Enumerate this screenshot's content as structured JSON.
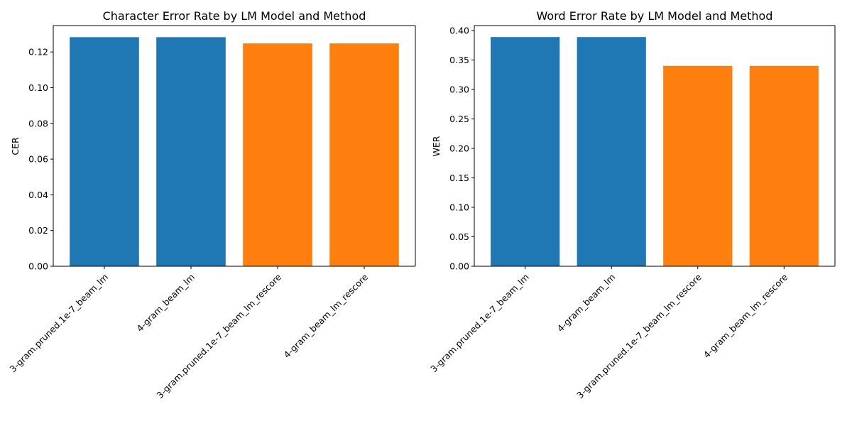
{
  "chart_data": [
    {
      "type": "bar",
      "title": "Character Error Rate by LM Model and Method",
      "xlabel": "",
      "ylabel": "CER",
      "categories": [
        "3-gram.pruned.1e-7_beam_lm",
        "4-gram_beam_lm",
        "3-gram.pruned.1e-7_beam_lm_rescore",
        "4-gram_beam_lm_rescore"
      ],
      "values": [
        0.1283,
        0.1283,
        0.1248,
        0.1248
      ],
      "bar_colors": [
        "#1f77b4",
        "#1f77b4",
        "#ff7f0e",
        "#ff7f0e"
      ],
      "ylim": [
        0,
        0.1348
      ],
      "yticks": [
        0.0,
        0.02,
        0.04,
        0.06,
        0.08,
        0.1,
        0.12
      ],
      "ytick_labels": [
        "0.00",
        "0.02",
        "0.04",
        "0.06",
        "0.08",
        "0.10",
        "0.12"
      ],
      "grid": false,
      "legend": "none"
    },
    {
      "type": "bar",
      "title": "Word Error Rate by LM Model and Method",
      "xlabel": "",
      "ylabel": "WER",
      "categories": [
        "3-gram.pruned.1e-7_beam_lm",
        "4-gram_beam_lm",
        "3-gram.pruned.1e-7_beam_lm_rescore",
        "4-gram_beam_lm_rescore"
      ],
      "values": [
        0.389,
        0.389,
        0.34,
        0.34
      ],
      "bar_colors": [
        "#1f77b4",
        "#1f77b4",
        "#ff7f0e",
        "#ff7f0e"
      ],
      "ylim": [
        0,
        0.4085
      ],
      "yticks": [
        0.0,
        0.05,
        0.1,
        0.15,
        0.2,
        0.25,
        0.3,
        0.35,
        0.4
      ],
      "ytick_labels": [
        "0.00",
        "0.05",
        "0.10",
        "0.15",
        "0.20",
        "0.25",
        "0.30",
        "0.35",
        "0.40"
      ],
      "grid": false,
      "legend": "none"
    }
  ]
}
